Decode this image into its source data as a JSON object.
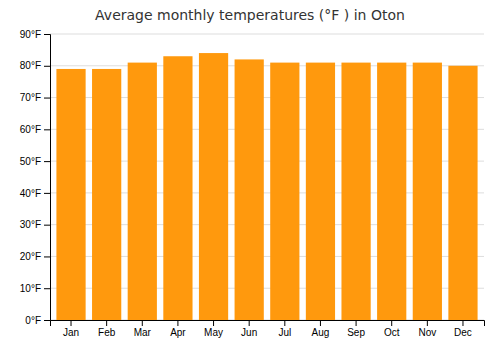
{
  "chart_data": {
    "type": "bar",
    "title": "Average monthly temperatures (°F ) in Oton",
    "categories": [
      "Jan",
      "Feb",
      "Mar",
      "Apr",
      "May",
      "Jun",
      "Jul",
      "Aug",
      "Sep",
      "Oct",
      "Nov",
      "Dec"
    ],
    "values": [
      79,
      79,
      81,
      83,
      84,
      82,
      81,
      81,
      81,
      81,
      81,
      80
    ],
    "color": "#ff990d",
    "ylim": [
      0,
      90
    ],
    "yticks": [
      {
        "value": 0,
        "label": "0°F"
      },
      {
        "value": 10,
        "label": "10°F"
      },
      {
        "value": 20,
        "label": "20°F"
      },
      {
        "value": 30,
        "label": "30°F"
      },
      {
        "value": 40,
        "label": "40°F"
      },
      {
        "value": 50,
        "label": "50°F"
      },
      {
        "value": 60,
        "label": "60°F"
      },
      {
        "value": 70,
        "label": "70°F"
      },
      {
        "value": 80,
        "label": "80°F"
      },
      {
        "value": 90,
        "label": "90°F"
      }
    ],
    "grid": true
  }
}
